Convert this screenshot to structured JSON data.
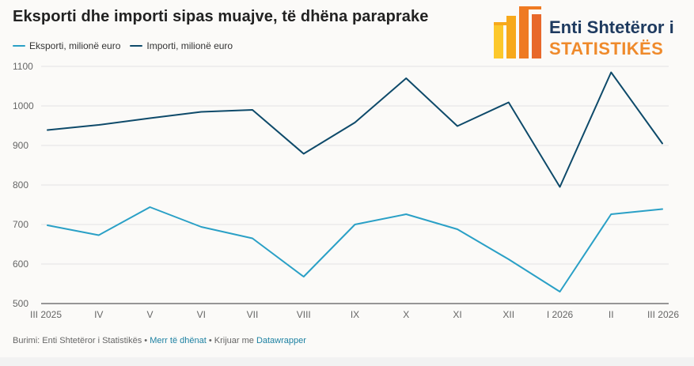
{
  "title": "Eksporti dhe importi sipas muajve, të dhëna paraprake",
  "legend": [
    {
      "label": "Eksporti, milionë euro",
      "color": "#2aa0c6"
    },
    {
      "label": "Importi, milionë euro",
      "color": "#0e4a6a"
    }
  ],
  "logo": {
    "line1": "Enti Shtetëror i",
    "line2": "STATISTIKËS",
    "colors": [
      "#fcc82b",
      "#f7a91b",
      "#ef7a22",
      "#e8682a"
    ]
  },
  "chart_data": {
    "type": "line",
    "categories": [
      "III 2025",
      "IV",
      "V",
      "VI",
      "VII",
      "VIII",
      "IX",
      "X",
      "XI",
      "XII",
      "I 2026",
      "II",
      "III 2026"
    ],
    "series": [
      {
        "name": "Eksporti, milionë euro",
        "color": "#2aa0c6",
        "values": [
          698,
          673,
          744,
          694,
          665,
          568,
          700,
          726,
          688,
          612,
          530,
          726,
          739
        ]
      },
      {
        "name": "Importi, milionë euro",
        "color": "#0e4a6a",
        "values": [
          939,
          952,
          969,
          985,
          990,
          879,
          958,
          1070,
          949,
          1009,
          795,
          1085,
          905
        ]
      }
    ],
    "yticks": [
      500,
      600,
      700,
      800,
      900,
      1000,
      1100
    ],
    "ylim": [
      500,
      1100
    ],
    "grid": true,
    "legend_position": "top-left"
  },
  "footer": {
    "source": "Burimi: Enti Shtetëror i Statistikës",
    "sep1": "•",
    "data_link": "Merr të dhënat",
    "sep2": "•",
    "created_with": "Krijuar me",
    "tool_link": "Datawrapper"
  }
}
